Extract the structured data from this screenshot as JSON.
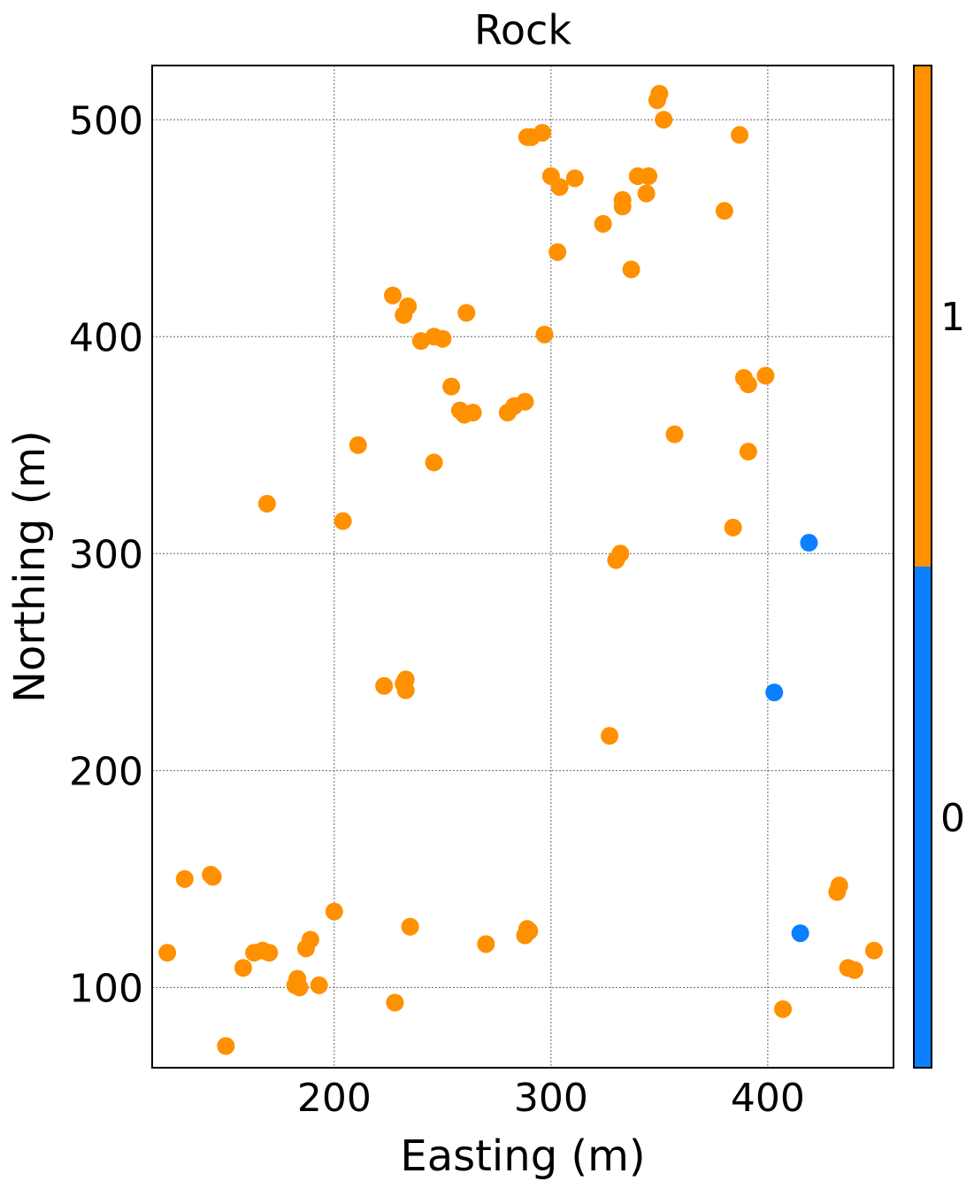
{
  "chart_data": {
    "type": "scatter",
    "title": "Rock",
    "xlabel": "Easting (m)",
    "ylabel": "Northing (m)",
    "xlim": [
      116,
      458
    ],
    "ylim": [
      63,
      525
    ],
    "xticks": [
      200,
      300,
      400
    ],
    "yticks": [
      100,
      200,
      300,
      400,
      500
    ],
    "grid": true,
    "colorbar": {
      "ticks": [
        0,
        1
      ],
      "colors": {
        "0": "#0a80ff",
        "1": "#ff9000"
      }
    },
    "points": [
      {
        "x": 350,
        "y": 512,
        "c": 1
      },
      {
        "x": 349,
        "y": 509,
        "c": 1
      },
      {
        "x": 352,
        "y": 500,
        "c": 1
      },
      {
        "x": 296,
        "y": 494,
        "c": 1
      },
      {
        "x": 289,
        "y": 492,
        "c": 1
      },
      {
        "x": 291,
        "y": 492,
        "c": 1
      },
      {
        "x": 387,
        "y": 493,
        "c": 1
      },
      {
        "x": 300,
        "y": 474,
        "c": 1
      },
      {
        "x": 304,
        "y": 469,
        "c": 1
      },
      {
        "x": 311,
        "y": 473,
        "c": 1
      },
      {
        "x": 340,
        "y": 474,
        "c": 1
      },
      {
        "x": 345,
        "y": 474,
        "c": 1
      },
      {
        "x": 344,
        "y": 466,
        "c": 1
      },
      {
        "x": 333,
        "y": 463,
        "c": 1
      },
      {
        "x": 333,
        "y": 460,
        "c": 1
      },
      {
        "x": 380,
        "y": 458,
        "c": 1
      },
      {
        "x": 324,
        "y": 452,
        "c": 1
      },
      {
        "x": 303,
        "y": 439,
        "c": 1
      },
      {
        "x": 337,
        "y": 431,
        "c": 1
      },
      {
        "x": 227,
        "y": 419,
        "c": 1
      },
      {
        "x": 234,
        "y": 414,
        "c": 1
      },
      {
        "x": 232,
        "y": 410,
        "c": 1
      },
      {
        "x": 261,
        "y": 411,
        "c": 1
      },
      {
        "x": 297,
        "y": 401,
        "c": 1
      },
      {
        "x": 240,
        "y": 398,
        "c": 1
      },
      {
        "x": 246,
        "y": 400,
        "c": 1
      },
      {
        "x": 250,
        "y": 399,
        "c": 1
      },
      {
        "x": 389,
        "y": 381,
        "c": 1
      },
      {
        "x": 391,
        "y": 378,
        "c": 1
      },
      {
        "x": 399,
        "y": 382,
        "c": 1
      },
      {
        "x": 254,
        "y": 377,
        "c": 1
      },
      {
        "x": 288,
        "y": 370,
        "c": 1
      },
      {
        "x": 283,
        "y": 368,
        "c": 1
      },
      {
        "x": 280,
        "y": 365,
        "c": 1
      },
      {
        "x": 258,
        "y": 366,
        "c": 1
      },
      {
        "x": 260,
        "y": 364,
        "c": 1
      },
      {
        "x": 264,
        "y": 365,
        "c": 1
      },
      {
        "x": 357,
        "y": 355,
        "c": 1
      },
      {
        "x": 211,
        "y": 350,
        "c": 1
      },
      {
        "x": 391,
        "y": 347,
        "c": 1
      },
      {
        "x": 246,
        "y": 342,
        "c": 1
      },
      {
        "x": 169,
        "y": 323,
        "c": 1
      },
      {
        "x": 204,
        "y": 315,
        "c": 1
      },
      {
        "x": 384,
        "y": 312,
        "c": 1
      },
      {
        "x": 332,
        "y": 300,
        "c": 1
      },
      {
        "x": 330,
        "y": 297,
        "c": 1
      },
      {
        "x": 419,
        "y": 305,
        "c": 0
      },
      {
        "x": 233,
        "y": 242,
        "c": 1
      },
      {
        "x": 232,
        "y": 240,
        "c": 1
      },
      {
        "x": 233,
        "y": 237,
        "c": 1
      },
      {
        "x": 223,
        "y": 239,
        "c": 1
      },
      {
        "x": 403,
        "y": 236,
        "c": 0
      },
      {
        "x": 327,
        "y": 216,
        "c": 1
      },
      {
        "x": 433,
        "y": 147,
        "c": 1
      },
      {
        "x": 432,
        "y": 144,
        "c": 1
      },
      {
        "x": 143,
        "y": 152,
        "c": 1
      },
      {
        "x": 144,
        "y": 151,
        "c": 1
      },
      {
        "x": 131,
        "y": 150,
        "c": 1
      },
      {
        "x": 200,
        "y": 135,
        "c": 1
      },
      {
        "x": 235,
        "y": 128,
        "c": 1
      },
      {
        "x": 289,
        "y": 127,
        "c": 1
      },
      {
        "x": 290,
        "y": 126,
        "c": 1
      },
      {
        "x": 288,
        "y": 124,
        "c": 1
      },
      {
        "x": 415,
        "y": 125,
        "c": 0
      },
      {
        "x": 189,
        "y": 122,
        "c": 1
      },
      {
        "x": 187,
        "y": 118,
        "c": 1
      },
      {
        "x": 270,
        "y": 120,
        "c": 1
      },
      {
        "x": 167,
        "y": 117,
        "c": 1
      },
      {
        "x": 170,
        "y": 116,
        "c": 1
      },
      {
        "x": 163,
        "y": 116,
        "c": 1
      },
      {
        "x": 123,
        "y": 116,
        "c": 1
      },
      {
        "x": 449,
        "y": 117,
        "c": 1
      },
      {
        "x": 158,
        "y": 109,
        "c": 1
      },
      {
        "x": 437,
        "y": 109,
        "c": 1
      },
      {
        "x": 440,
        "y": 108,
        "c": 1
      },
      {
        "x": 183,
        "y": 104,
        "c": 1
      },
      {
        "x": 182,
        "y": 101,
        "c": 1
      },
      {
        "x": 193,
        "y": 101,
        "c": 1
      },
      {
        "x": 184,
        "y": 100,
        "c": 1
      },
      {
        "x": 228,
        "y": 93,
        "c": 1
      },
      {
        "x": 407,
        "y": 90,
        "c": 1
      },
      {
        "x": 150,
        "y": 73,
        "c": 1
      }
    ]
  }
}
